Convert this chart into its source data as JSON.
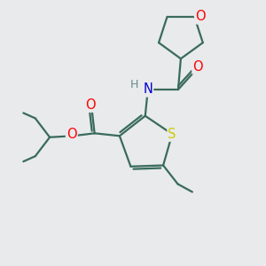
{
  "background_color": "#e8eaec",
  "bond_color": "#3a6b5a",
  "bond_width": 1.6,
  "atom_colors": {
    "O": "#ff0000",
    "N": "#0000cc",
    "S": "#cccc00",
    "H": "#6a8a8a",
    "C": "#3a6b5a"
  },
  "figsize": [
    3.0,
    3.0
  ],
  "dpi": 100
}
